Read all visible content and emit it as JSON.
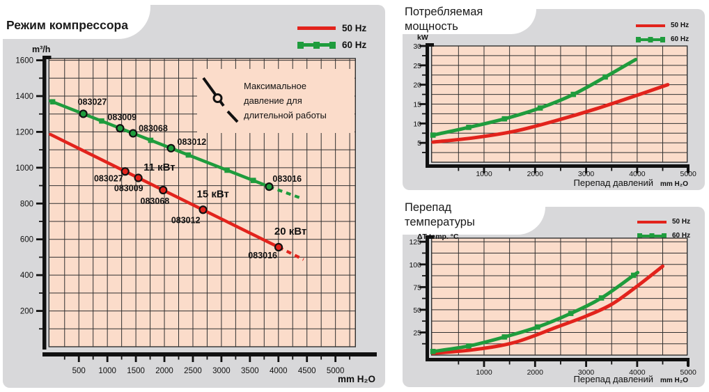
{
  "colors": {
    "red": "#e2231c",
    "green": "#1f9c3d",
    "panel_gray": "#d8d8da",
    "plot_bg": "#fbdcca",
    "grid": "#303030",
    "text": "#111111"
  },
  "chart_data": [
    {
      "id": "compressor",
      "type": "line",
      "title": "Режим компрессора",
      "ylabel": "m³/h",
      "x_unit": "mm H₂O",
      "xlim": [
        0,
        5350
      ],
      "ylim": [
        0,
        1610
      ],
      "x_ticks": [
        500,
        1000,
        1500,
        2000,
        2500,
        3000,
        3500,
        4000,
        4500,
        5000
      ],
      "x_minor_step": 250,
      "x_minor_max": 5250,
      "y_ticks": [
        200,
        400,
        600,
        800,
        1000,
        1200,
        1400,
        1600
      ],
      "y_minor_step": 100,
      "y_minor_max": 1500,
      "grid_x_step": 250,
      "grid_y_step": 100,
      "legend": [
        {
          "label": "50 Hz",
          "color": "#e2231c"
        },
        {
          "label": "60 Hz",
          "color": "#1f9c3d"
        }
      ],
      "series": [
        {
          "name": "50 Hz",
          "color": "#e2231c",
          "curve": false,
          "points": [
            [
              0,
              1186
            ],
            [
              4003,
              556
            ]
          ],
          "dash_ext": [
            [
              4003,
              556
            ],
            [
              4440,
              487
            ]
          ],
          "model_points": [
            {
              "label": "083027",
              "x": 1312,
              "y": 979,
              "anchor": "end",
              "dx": -3,
              "dy": 14
            },
            {
              "label": "083009",
              "x": 1543,
              "y": 943,
              "anchor": "end",
              "dx": 7,
              "dy": 19
            },
            {
              "label": "083068",
              "x": 1978,
              "y": 875,
              "anchor": "end",
              "dx": 9,
              "dy": 20
            },
            {
              "label": "083012",
              "x": 2678,
              "y": 765,
              "anchor": "end",
              "dx": -4,
              "dy": 19
            },
            {
              "label": "083016",
              "x": 4003,
              "y": 556,
              "anchor": "end",
              "dx": -2,
              "dy": 16
            }
          ]
        },
        {
          "name": "60 Hz",
          "color": "#1f9c3d",
          "curve": false,
          "points": [
            [
              0,
              1373
            ],
            [
              3837,
              894
            ]
          ],
          "dash_ext": [
            [
              3837,
              894
            ],
            [
              4370,
              833
            ]
          ],
          "square_markers": [
            [
              40,
              1368
            ],
            [
              900,
              1261
            ],
            [
              1760,
              1153
            ],
            [
              2420,
              1071
            ],
            [
              3100,
              986
            ],
            [
              3560,
              929
            ]
          ],
          "model_points": [
            {
              "label": "083027",
              "x": 578,
              "y": 1301,
              "anchor": "start",
              "dx": -8,
              "dy": -13
            },
            {
              "label": "083009",
              "x": 1223,
              "y": 1220,
              "anchor": "start",
              "dx": -18,
              "dy": -12
            },
            {
              "label": "083068",
              "x": 1451,
              "y": 1192,
              "anchor": "start",
              "dx": 8,
              "dy": -3
            },
            {
              "label": "083012",
              "x": 2116,
              "y": 1109,
              "anchor": "start",
              "dx": 9,
              "dy": -5
            },
            {
              "label": "083016",
              "x": 3837,
              "y": 894,
              "anchor": "start",
              "dx": 5,
              "dy": -7
            }
          ]
        }
      ],
      "labels": [
        {
          "text": "11 кВт",
          "x": 1912,
          "y": 984
        },
        {
          "text": "15 кВт",
          "x": 2851,
          "y": 834
        },
        {
          "text": "20 кВт",
          "x": 4211,
          "y": 626
        }
      ],
      "annotation": {
        "lines": [
          "Максимальное",
          "давление для",
          "длительной работы"
        ],
        "icon": "max-pressure-marker-icon"
      }
    },
    {
      "id": "power",
      "type": "line",
      "title": "Потребляемая мощность",
      "title_lines": [
        "Потребляемая",
        "мощность"
      ],
      "ylabel": "kW",
      "xlabel": "Перепад давлений",
      "x_unit": "mm H₂O",
      "xlim": [
        0,
        4980
      ],
      "ylim": [
        0,
        30
      ],
      "x_ticks": [
        1000,
        2000,
        3000,
        4000,
        5000
      ],
      "x_minor_step": 500,
      "x_minor_max": 4500,
      "y_ticks": [
        5,
        10,
        15,
        20,
        25,
        30
      ],
      "y_minor_step": 2.5,
      "y_minor_max": 27.5,
      "grid_x_step": 500,
      "grid_y_step": 2.5,
      "legend": [
        {
          "label": "50 Hz",
          "color": "#e2231c"
        },
        {
          "label": "60 Hz",
          "color": "#1f9c3d"
        }
      ],
      "series": [
        {
          "name": "50 Hz",
          "color": "#e2231c",
          "curve": true,
          "points": [
            [
              0,
              5.2
            ],
            [
              800,
              6.3
            ],
            [
              1600,
              8
            ],
            [
              2400,
              10.7
            ],
            [
              3200,
              13.8
            ],
            [
              4000,
              17.3
            ],
            [
              4600,
              20
            ]
          ]
        },
        {
          "name": "60 Hz",
          "color": "#1f9c3d",
          "curve": true,
          "marker": "square",
          "marker_skip_last": true,
          "points": [
            [
              0,
              7
            ],
            [
              700,
              9
            ],
            [
              1400,
              11.2
            ],
            [
              2100,
              14
            ],
            [
              2750,
              17.5
            ],
            [
              3375,
              22
            ],
            [
              3970,
              26.5
            ]
          ]
        }
      ]
    },
    {
      "id": "temp",
      "type": "line",
      "title": "Перепад температуры",
      "title_lines": [
        "Перепад",
        "температуры"
      ],
      "ylabel": "ΔT temp. °C",
      "xlabel": "Перепад давлений",
      "x_unit": "mm H₂O",
      "xlim": [
        0,
        4980
      ],
      "ylim": [
        0,
        129
      ],
      "x_ticks": [
        1000,
        2000,
        3000,
        4000,
        5000
      ],
      "x_minor_step": 500,
      "x_minor_max": 4500,
      "y_ticks": [
        25,
        50,
        75,
        100,
        125
      ],
      "y_minor_step": 12.5,
      "y_minor_max": 117.5,
      "grid_x_step": 500,
      "grid_y_step": 12.5,
      "legend": [
        {
          "label": "50 Hz",
          "color": "#e2231c"
        },
        {
          "label": "60 Hz",
          "color": "#1f9c3d"
        }
      ],
      "series": [
        {
          "name": "50 Hz",
          "color": "#e2231c",
          "curve": true,
          "points": [
            [
              0,
              2
            ],
            [
              800,
              6
            ],
            [
              1600,
              14
            ],
            [
              2430,
              31
            ],
            [
              3000,
              43
            ],
            [
              3500,
              56
            ],
            [
              4000,
              76
            ],
            [
              4500,
              98
            ]
          ]
        },
        {
          "name": "60 Hz",
          "color": "#1f9c3d",
          "curve": true,
          "marker": "square",
          "marker_skip_last": true,
          "points": [
            [
              0,
              4
            ],
            [
              700,
              10
            ],
            [
              1400,
              20
            ],
            [
              2050,
              31
            ],
            [
              2700,
              46
            ],
            [
              3300,
              63
            ],
            [
              3930,
              88
            ],
            [
              4010,
              91
            ]
          ]
        }
      ]
    }
  ]
}
